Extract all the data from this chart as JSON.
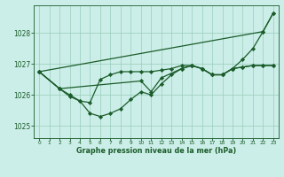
{
  "bg_color": "#cceee8",
  "grid_color": "#99ccbb",
  "line_color": "#1a5c2a",
  "marker_color": "#1a5c2a",
  "xlabel": "Graphe pression niveau de la mer (hPa)",
  "xlabel_color": "#1a5c2a",
  "tick_color": "#1a5c2a",
  "ylim": [
    1024.6,
    1028.9
  ],
  "xlim": [
    -0.5,
    23.5
  ],
  "yticks": [
    1025,
    1026,
    1027,
    1028
  ],
  "xticks": [
    0,
    1,
    2,
    3,
    4,
    5,
    6,
    7,
    8,
    9,
    10,
    11,
    12,
    13,
    14,
    15,
    16,
    17,
    18,
    19,
    20,
    21,
    22,
    23
  ],
  "series": [
    [
      1026.75,
      null,
      null,
      null,
      null,
      null,
      null,
      null,
      null,
      null,
      null,
      null,
      null,
      null,
      null,
      null,
      null,
      null,
      null,
      null,
      null,
      null,
      1028.05,
      1028.65
    ],
    [
      1026.75,
      null,
      1026.2,
      null,
      null,
      null,
      null,
      null,
      null,
      null,
      1026.45,
      1026.1,
      1026.55,
      null,
      1026.85,
      1026.95,
      1026.85,
      1026.65,
      1026.65,
      1026.85,
      1027.15,
      1027.5,
      1028.05,
      1028.65
    ],
    [
      1026.75,
      null,
      1026.2,
      1026.0,
      1025.8,
      1025.75,
      1026.5,
      1026.65,
      1026.75,
      1026.75,
      1026.75,
      1026.75,
      1026.8,
      1026.85,
      1026.95,
      1026.95,
      1026.85,
      1026.65,
      1026.65,
      1026.85,
      1026.9,
      1026.95,
      1026.95,
      1026.95
    ],
    [
      1026.75,
      null,
      1026.2,
      1025.95,
      1025.8,
      1025.4,
      1025.3,
      1025.4,
      1025.55,
      1025.85,
      1026.1,
      1026.0,
      1026.35,
      1026.65,
      1026.85,
      1026.95,
      1026.85,
      1026.65,
      1026.65,
      1026.85,
      1026.9,
      1026.95,
      1026.95,
      1026.95
    ]
  ]
}
